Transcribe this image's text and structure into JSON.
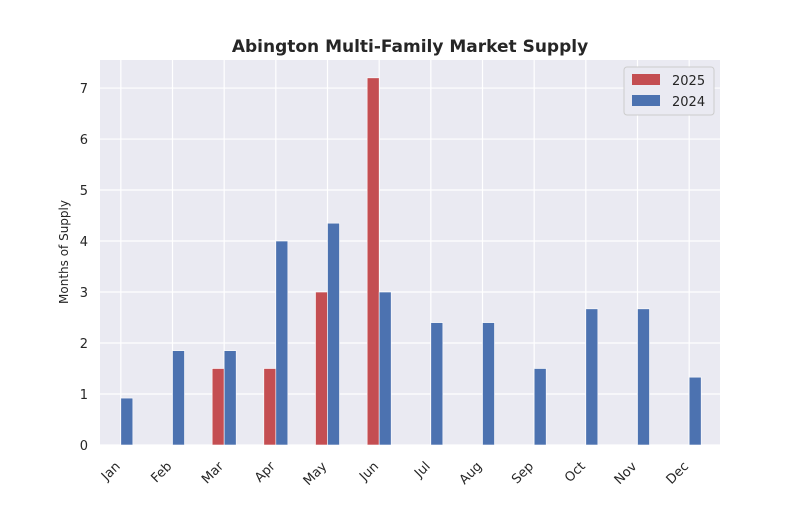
{
  "chart_data": {
    "type": "bar",
    "title": "Abington Multi-Family Market Supply",
    "xlabel": "",
    "ylabel": "Months of Supply",
    "categories": [
      "Jan",
      "Feb",
      "Mar",
      "Apr",
      "May",
      "Jun",
      "Jul",
      "Aug",
      "Sep",
      "Oct",
      "Nov",
      "Dec"
    ],
    "series": [
      {
        "name": "2025",
        "color": "#c44e52",
        "values": [
          0,
          0,
          1.5,
          1.5,
          3.0,
          7.2,
          0,
          0,
          0,
          0,
          0,
          0
        ]
      },
      {
        "name": "2024",
        "color": "#4c72b0",
        "values": [
          0.92,
          1.85,
          1.85,
          4.0,
          4.35,
          3.0,
          2.4,
          2.4,
          1.5,
          2.67,
          2.67,
          1.33
        ]
      }
    ],
    "ylim": [
      0,
      7.55
    ],
    "yticks": [
      0,
      1,
      2,
      3,
      4,
      5,
      6,
      7
    ],
    "grid": true,
    "legend_position": "top-right",
    "background_color": "#eaeaf2"
  }
}
